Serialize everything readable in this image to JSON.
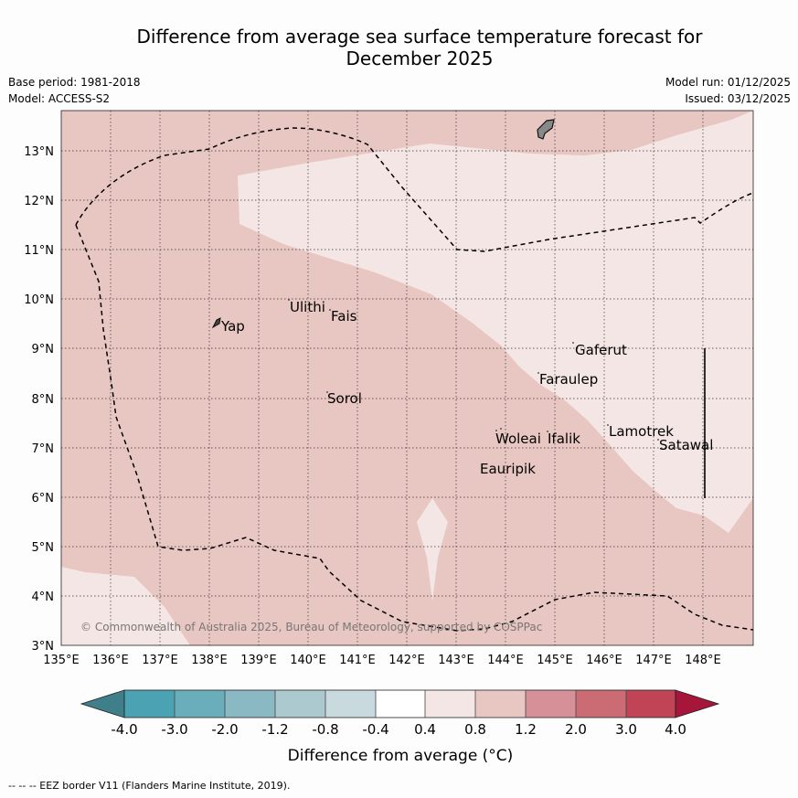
{
  "header": {
    "title_line1": "Difference from average sea surface temperature forecast for",
    "title_line2": "December 2025",
    "base_period": "Base period: 1981-2018",
    "model": "Model: ACCESS-S2",
    "model_run": "Model run: 01/12/2025",
    "issued": "Issued: 03/12/2025"
  },
  "map": {
    "lat_labels": [
      "13°N",
      "12°N",
      "11°N",
      "10°N",
      "9°N",
      "8°N",
      "7°N",
      "6°N",
      "5°N",
      "4°N",
      "3°N"
    ],
    "lon_labels": [
      "135°E",
      "136°E",
      "137°E",
      "138°E",
      "139°E",
      "140°E",
      "141°E",
      "142°E",
      "143°E",
      "144°E",
      "145°E",
      "146°E",
      "147°E",
      "148°E"
    ],
    "places": [
      {
        "name": "Ulithi"
      },
      {
        "name": "Fais"
      },
      {
        "name": "Yap"
      },
      {
        "name": "Sorol"
      },
      {
        "name": "Gaferut"
      },
      {
        "name": "Faraulep"
      },
      {
        "name": "Woleai"
      },
      {
        "name": "Ifalik"
      },
      {
        "name": "Lamotrek"
      },
      {
        "name": "Satawal"
      },
      {
        "name": "Eauripik"
      }
    ],
    "copyright": "© Commonwealth of Australia 2025, Bureau of Meteorology, supported by COSPPac"
  },
  "colorbar": {
    "ticks": [
      "-4.0",
      "-3.0",
      "-2.0",
      "-1.2",
      "-0.8",
      "-0.4",
      "0.4",
      "0.8",
      "1.2",
      "2.0",
      "3.0",
      "4.0"
    ],
    "colors": [
      "#3f7f8a",
      "#4aa2b2",
      "#6aaebb",
      "#8ab9c4",
      "#abc9cf",
      "#c8dadd",
      "#ffffff",
      "#f4e6e4",
      "#e8c6c1",
      "#d69097",
      "#cb6b74",
      "#c04455",
      "#a5163a"
    ],
    "title": "Difference from average (°C)"
  },
  "legend": {
    "eez": "--  --  -- EEZ border V11 (Flanders Marine Institute, 2019)."
  },
  "fills": {
    "band_0_8_1_2": "#e8c6c1",
    "band_0_4_0_8": "#f4e6e4"
  }
}
